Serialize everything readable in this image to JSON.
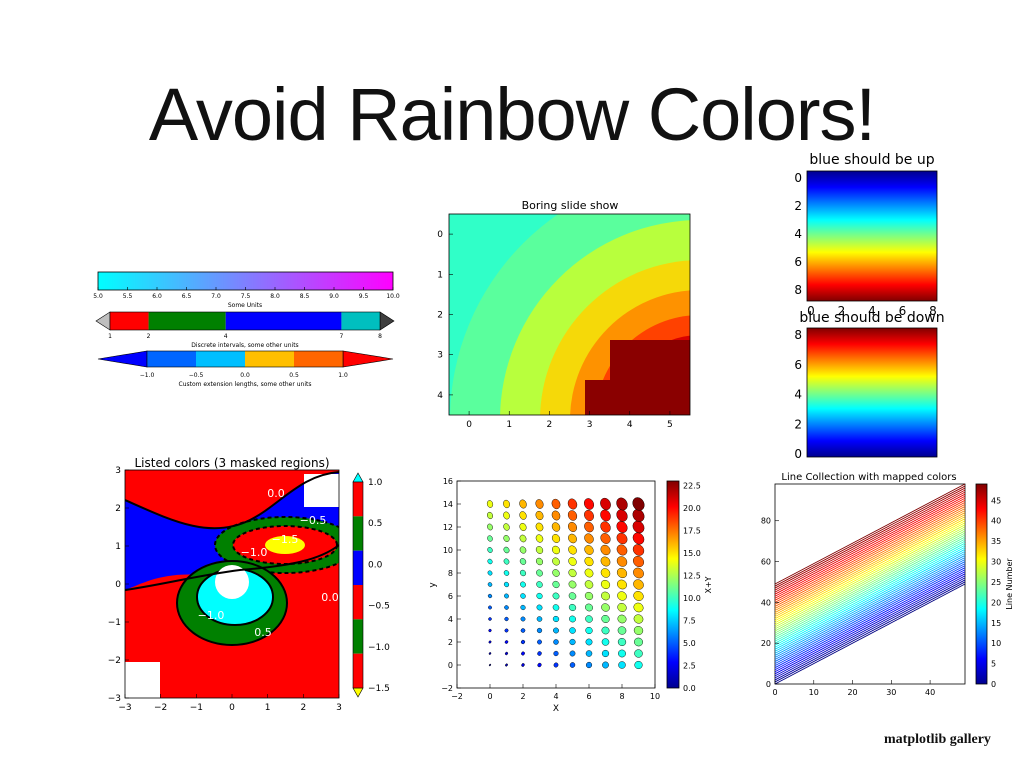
{
  "slide": {
    "title": "Avoid Rainbow Colors!",
    "credit": "matplotlib gallery"
  },
  "colors": {
    "discrete": [
      "#ff0000",
      "#008000",
      "#0000ff",
      "#00bfbf"
    ],
    "custom_ext": [
      "#0000ff",
      "#0066ff",
      "#00bfff",
      "#ffbf00",
      "#ff6600",
      "#ff0000"
    ],
    "listed": [
      "#ff0000",
      "#008000",
      "#0000ff",
      "#ff0000",
      "#008000",
      "#ff0000"
    ]
  },
  "chart_data": [
    {
      "type": "colorbar",
      "panel": "colorbars-cool",
      "orientation": "horizontal",
      "colormap": "cool",
      "ticks": [
        "5.0",
        "5.5",
        "6.0",
        "6.5",
        "7.0",
        "7.5",
        "8.0",
        "8.5",
        "9.0",
        "9.5",
        "10.0"
      ],
      "xlabel": "Some Units",
      "xlim": [
        5,
        10
      ]
    },
    {
      "type": "colorbar",
      "panel": "colorbars-discrete",
      "orientation": "horizontal",
      "boundaries": [
        1,
        2,
        4,
        7,
        8
      ],
      "ticks": [
        "1",
        "2",
        "4",
        "7",
        "8"
      ],
      "extend": "both",
      "xlabel": "Discrete intervals, some other units"
    },
    {
      "type": "colorbar",
      "panel": "colorbars-custom",
      "orientation": "horizontal",
      "boundaries": [
        -1.5,
        -1.0,
        -0.5,
        0.0,
        0.5,
        1.0,
        1.5
      ],
      "ticks": [
        "−1.0",
        "−0.5",
        "0.0",
        "0.5",
        "1.0"
      ],
      "extend": "both",
      "xlabel": "Custom extension lengths, some other units"
    },
    {
      "type": "heatmap",
      "panel": "boring-slide-show",
      "title": "Boring slide show",
      "colormap": "jet",
      "xticks": [
        "0",
        "1",
        "2",
        "3",
        "4",
        "5"
      ],
      "yticks": [
        "0",
        "1",
        "2",
        "3",
        "4"
      ],
      "xlim": [
        -0.5,
        5.5
      ],
      "ylim": [
        4.5,
        -0.5
      ]
    },
    {
      "type": "heatmap",
      "panel": "blue-up",
      "title": "blue should be up",
      "colormap": "jet",
      "xticks": [
        "0",
        "2",
        "4",
        "6",
        "8"
      ],
      "yticks": [
        "0",
        "2",
        "4",
        "6",
        "8"
      ]
    },
    {
      "type": "heatmap",
      "panel": "blue-down",
      "title": "blue should be down",
      "colormap": "jet",
      "yticks": [
        "8",
        "6",
        "4",
        "2",
        "0"
      ]
    },
    {
      "type": "contour",
      "panel": "listed-colors",
      "title": "Listed colors (3 masked regions)",
      "xticks": [
        "−3",
        "−2",
        "−1",
        "0",
        "1",
        "2",
        "3"
      ],
      "yticks": [
        "3",
        "2",
        "1",
        "0",
        "−1",
        "−2",
        "−3"
      ],
      "xlim": [
        -3,
        3
      ],
      "ylim": [
        -3,
        3
      ],
      "colorbar_ticks": [
        "1.0",
        "0.5",
        "0.0",
        "−0.5",
        "−1.0",
        "−1.5"
      ],
      "contour_labels": [
        "0.0",
        "−0.5",
        "−1.0",
        "−1.5",
        "0.0",
        "−1.0",
        "0.5"
      ]
    },
    {
      "type": "scatter",
      "panel": "ellipses",
      "xlabel": "X",
      "ylabel": "y",
      "xticks": [
        "−2",
        "0",
        "2",
        "4",
        "6",
        "8",
        "10"
      ],
      "yticks": [
        "16",
        "14",
        "12",
        "10",
        "8",
        "6",
        "4",
        "2",
        "0",
        "−2"
      ],
      "xlim": [
        -2,
        10
      ],
      "ylim": [
        -2,
        16
      ],
      "colorbar_label": "X+Y",
      "colorbar_ticks": [
        "22.5",
        "20.0",
        "17.5",
        "15.0",
        "12.5",
        "10.0",
        "7.5",
        "5.0",
        "2.5",
        "0.0"
      ],
      "colormap": "jet"
    },
    {
      "type": "line",
      "panel": "line-collection",
      "title": "Line Collection with mapped colors",
      "xticks": [
        "0",
        "10",
        "20",
        "30",
        "40"
      ],
      "yticks": [
        "80",
        "60",
        "40",
        "20",
        "0"
      ],
      "xlim": [
        0,
        49
      ],
      "ylim": [
        0,
        98
      ],
      "colorbar_label": "Line Number",
      "colorbar_ticks": [
        "45",
        "40",
        "35",
        "30",
        "25",
        "20",
        "15",
        "10",
        "5",
        "0"
      ],
      "colormap": "jet"
    }
  ]
}
